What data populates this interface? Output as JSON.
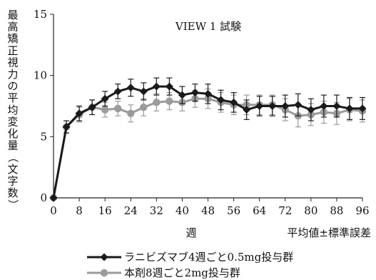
{
  "chart_data": {
    "type": "line",
    "title": "VIEW 1 試験",
    "ylabel": "最高矯正視力の平均変化量（文字数）",
    "xlabel": "週",
    "error_note": "平均値±標準誤差",
    "xlim": [
      0,
      96
    ],
    "ylim": [
      0,
      15
    ],
    "x_ticks": [
      0,
      8,
      16,
      24,
      32,
      40,
      48,
      56,
      64,
      72,
      80,
      88,
      96
    ],
    "y_ticks": [
      0,
      5,
      10,
      15
    ],
    "series": [
      {
        "name": "ラニビズマブ4週ごと0.5mg投与群",
        "color": "#1a1a1a",
        "marker": "diamond",
        "x": [
          0,
          4,
          8,
          12,
          16,
          20,
          24,
          28,
          32,
          36,
          40,
          44,
          48,
          52,
          56,
          60,
          64,
          68,
          72,
          76,
          80,
          84,
          88,
          92,
          96
        ],
        "y": [
          0,
          5.8,
          6.9,
          7.4,
          8.1,
          8.7,
          9.0,
          8.7,
          9.1,
          9.1,
          8.4,
          8.6,
          8.5,
          8.0,
          7.8,
          7.2,
          7.5,
          7.5,
          7.5,
          7.6,
          7.2,
          7.5,
          7.5,
          7.3,
          7.3
        ],
        "err": [
          0,
          0.5,
          0.6,
          0.6,
          0.6,
          0.6,
          0.7,
          0.7,
          0.7,
          0.7,
          0.7,
          0.7,
          0.8,
          0.8,
          0.8,
          0.8,
          0.8,
          0.8,
          0.9,
          0.9,
          0.9,
          0.9,
          0.9,
          0.9,
          0.9
        ]
      },
      {
        "name": "本剤8週ごと2mg投与群",
        "color": "#9b9b9b",
        "marker": "circle",
        "x": [
          0,
          4,
          8,
          12,
          16,
          20,
          24,
          28,
          32,
          36,
          40,
          44,
          48,
          52,
          56,
          60,
          64,
          68,
          72,
          76,
          80,
          84,
          88,
          92,
          96
        ],
        "y": [
          0,
          5.8,
          6.8,
          7.4,
          7.2,
          7.3,
          6.9,
          7.4,
          7.8,
          7.9,
          7.8,
          8.1,
          8.1,
          7.8,
          7.6,
          7.6,
          7.6,
          7.6,
          7.2,
          6.7,
          6.8,
          7.0,
          6.9,
          7.2,
          7.1
        ],
        "err": [
          0,
          0.5,
          0.6,
          0.6,
          0.6,
          0.6,
          0.7,
          0.7,
          0.7,
          0.7,
          0.7,
          0.7,
          0.8,
          0.8,
          0.8,
          0.8,
          0.8,
          0.8,
          0.9,
          0.9,
          0.9,
          0.9,
          0.9,
          0.9,
          0.9
        ]
      }
    ],
    "legend_position": "bottom-left"
  }
}
